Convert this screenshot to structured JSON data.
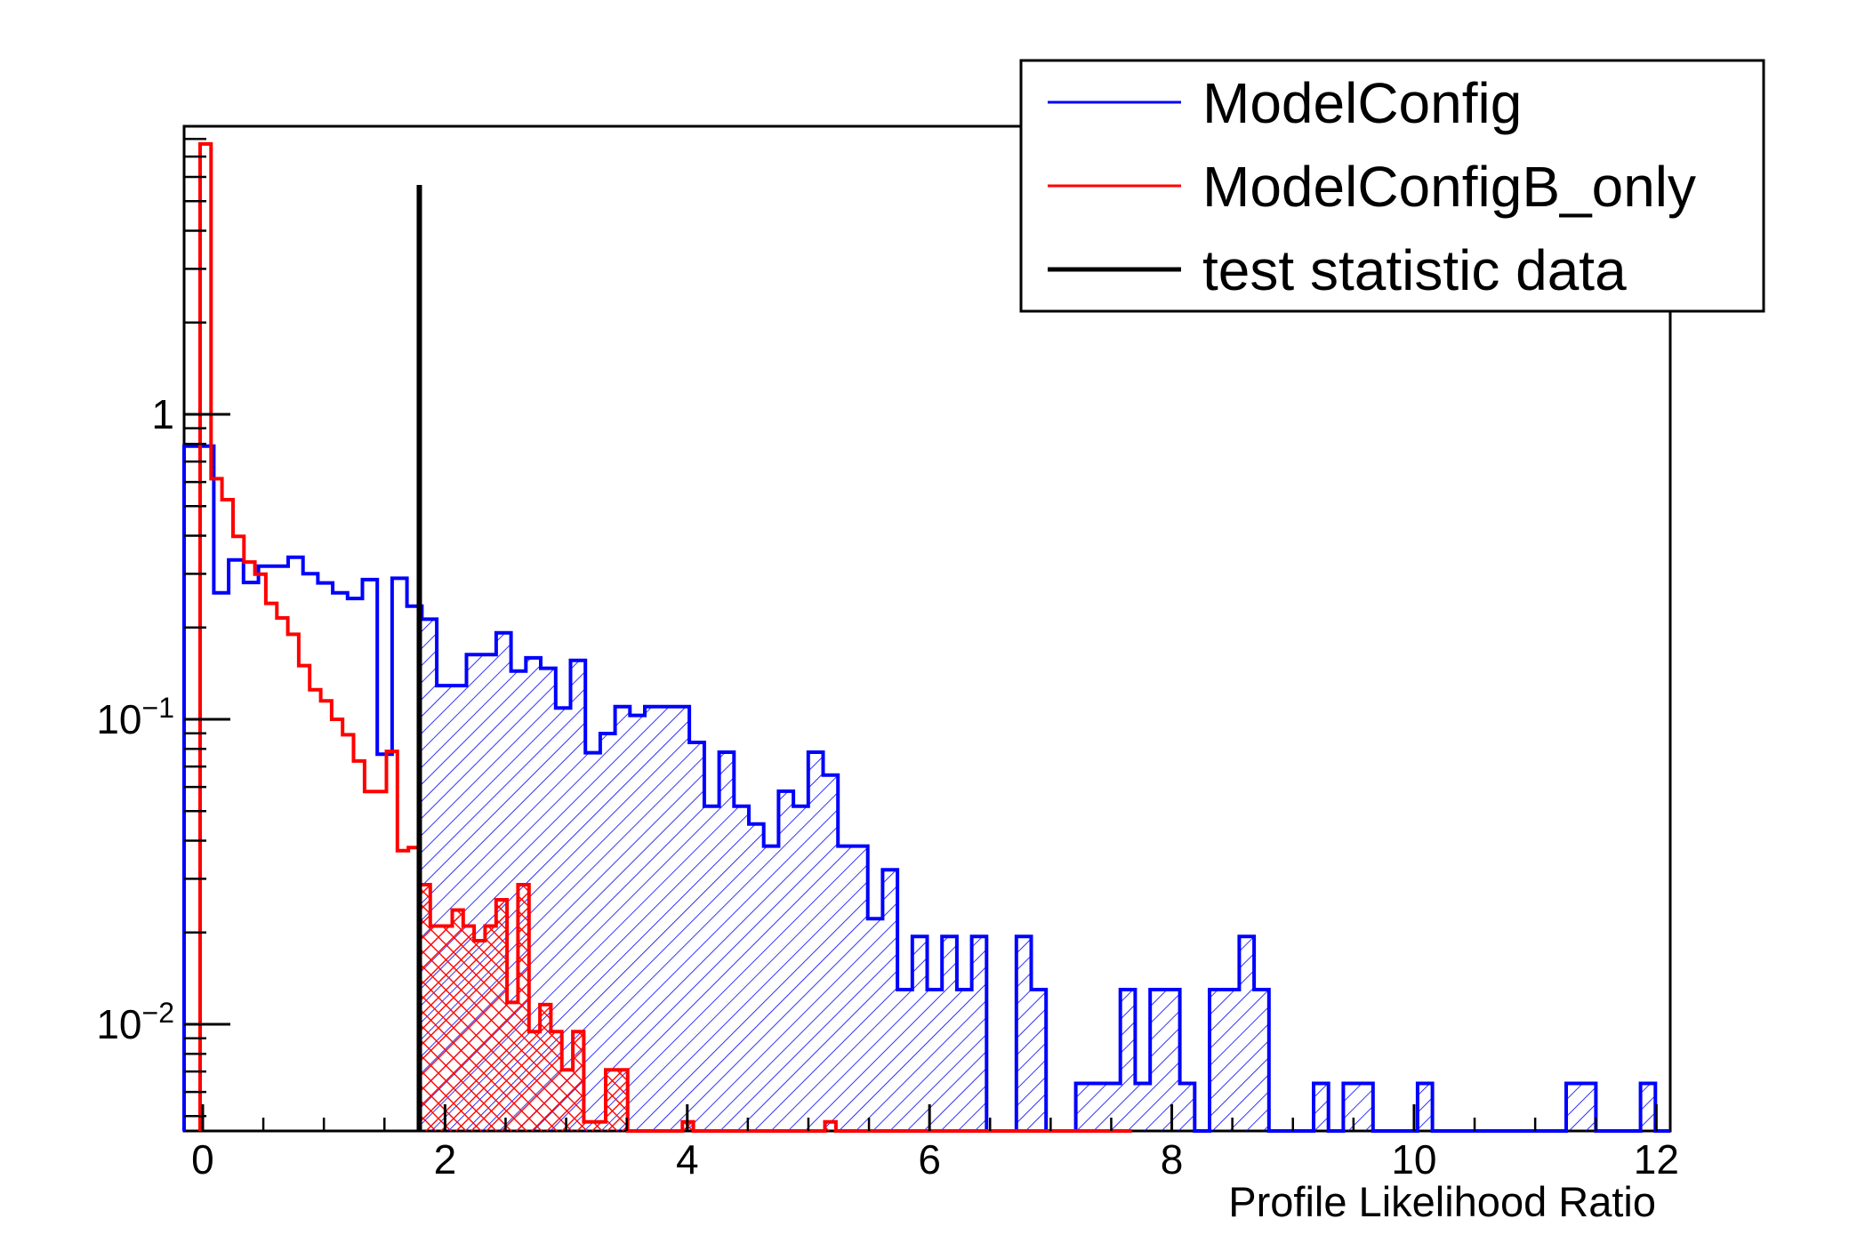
{
  "chart_data": {
    "type": "bar",
    "subtype": "step-histogram-log-y",
    "title": "",
    "xlabel": "Profile Likelihood Ratio",
    "ylabel": "",
    "x_range": [
      -0.154,
      12.115
    ],
    "y_min": 0.00447,
    "y_max": 8.8,
    "y_scale": "log",
    "grid": false,
    "legend_position": "top-right",
    "x_ticks": [
      {
        "v": 0,
        "label": "0"
      },
      {
        "v": 2,
        "label": "2"
      },
      {
        "v": 4,
        "label": "4"
      },
      {
        "v": 6,
        "label": "6"
      },
      {
        "v": 8,
        "label": "8"
      },
      {
        "v": 10,
        "label": "10"
      },
      {
        "v": 12,
        "label": "12"
      }
    ],
    "x_minor_step": 0.5,
    "y_ticks": [
      {
        "v": 1,
        "mant": "1",
        "exp": ""
      },
      {
        "v": 0.1,
        "mant": "10",
        "exp": "−1"
      },
      {
        "v": 0.01,
        "mant": "10",
        "exp": "−2"
      }
    ],
    "legend": [
      {
        "label": "ModelConfig",
        "color": "#0000ff"
      },
      {
        "label": "ModelConfigB_only",
        "color": "#ff0000"
      },
      {
        "label": "test statistic data",
        "color": "#000000"
      }
    ],
    "series": [
      {
        "name": "ModelConfig",
        "color": "#0000ff",
        "hatch": "diagonal",
        "x0": -0.154,
        "bin_width": 0.12269,
        "values": [
          0.787,
          0.787,
          0.26,
          0.333,
          0.281,
          0.318,
          0.318,
          0.34,
          0.3,
          0.28,
          0.26,
          0.249,
          0.287,
          0.0768,
          0.29,
          0.235,
          0.213,
          0.129,
          0.129,
          0.163,
          0.163,
          0.192,
          0.144,
          0.159,
          0.147,
          0.109,
          0.156,
          0.0777,
          0.0898,
          0.11,
          0.103,
          0.11,
          0.11,
          0.11,
          0.084,
          0.0519,
          0.078,
          0.0519,
          0.0454,
          0.0384,
          0.0581,
          0.0519,
          0.078,
          0.0656,
          0.0384,
          0.0384,
          0.0222,
          0.0321,
          0.013,
          0.0194,
          0.013,
          0.0194,
          0.013,
          0.0194,
          0,
          0,
          0.0194,
          0.013,
          0,
          0,
          0.0064,
          0.0064,
          0.0064,
          0.013,
          0.0064,
          0.013,
          0.013,
          0.0064,
          0,
          0.013,
          0.013,
          0.0194,
          0.013,
          0,
          0,
          0,
          0.0064,
          0,
          0.0064,
          0.0064,
          0,
          0,
          0,
          0.0064,
          0,
          0,
          0,
          0,
          0,
          0,
          0,
          0,
          0,
          0.0064,
          0.0064,
          0,
          0,
          0,
          0.0064,
          0
        ]
      },
      {
        "name": "ModelConfigB_only",
        "color": "#ff0000",
        "hatch": "cross",
        "x0": -0.022,
        "bin_width": 0.0905,
        "values": [
          7.7,
          0.615,
          0.525,
          0.398,
          0.328,
          0.299,
          0.24,
          0.215,
          0.19,
          0.15,
          0.125,
          0.115,
          0.1,
          0.089,
          0.073,
          0.058,
          0.058,
          0.0785,
          0.0371,
          0.038,
          0.0287,
          0.021,
          0.021,
          0.0237,
          0.021,
          0.0188,
          0.021,
          0.0256,
          0.0118,
          0.0287,
          0.00947,
          0.0116,
          0.00947,
          0.00709,
          0.00947,
          0.00479,
          0.00479,
          0.00709,
          0.00709,
          0,
          0,
          0,
          0,
          0,
          0.00479,
          0,
          0,
          0,
          0,
          0,
          0,
          0,
          0,
          0,
          0,
          0,
          0,
          0.00479,
          0,
          0,
          0,
          0,
          0,
          0,
          0,
          0,
          0,
          0,
          0,
          0,
          0,
          0,
          0,
          0,
          0,
          0,
          0,
          0,
          0,
          0,
          0,
          0,
          0,
          0,
          0
        ]
      }
    ],
    "test_statistic": {
      "x": 1.788,
      "top": 5.65,
      "color": "#000000"
    },
    "shade_from_x": 1.788
  }
}
